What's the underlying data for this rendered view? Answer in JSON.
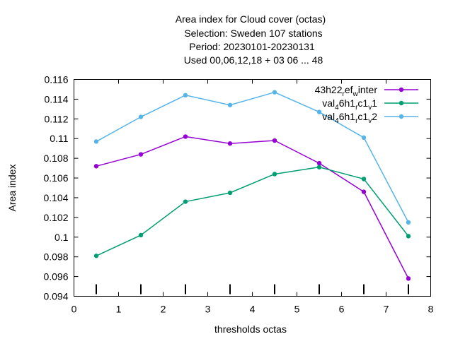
{
  "chart_data": {
    "type": "line",
    "title_lines": [
      "Area index  for Cloud cover (octas)",
      "Selection: Sweden    107 stations",
      "Period: 20230101-20230131",
      "Used  00,06,12,18  + 03 06 ... 48"
    ],
    "xlabel": "thresholds octas",
    "ylabel": "Area index",
    "xlim": [
      0,
      8
    ],
    "ylim": [
      0.094,
      0.116
    ],
    "x_ticks": [
      "0",
      "1",
      "2",
      "3",
      "4",
      "5",
      "6",
      "7",
      "8"
    ],
    "y_ticks": [
      "0.094",
      "0.096",
      "0.098",
      "0.1",
      "0.102",
      "0.104",
      "0.106",
      "0.108",
      "0.11",
      "0.112",
      "0.114",
      "0.116"
    ],
    "x": [
      0.5,
      1.5,
      2.5,
      3.5,
      4.5,
      5.5,
      6.5,
      7.5
    ],
    "series": [
      {
        "name": "43h22_ref_winter",
        "color": "#9400d3",
        "values": [
          0.1072,
          0.1084,
          0.1102,
          0.1095,
          0.1098,
          0.1075,
          0.1046,
          0.0958
        ]
      },
      {
        "name": "val_46h1_rc1_v1",
        "color": "#009e73",
        "values": [
          0.0981,
          0.1002,
          0.1036,
          0.1045,
          0.1064,
          0.1071,
          0.1059,
          0.1001
        ]
      },
      {
        "name": "val_46h1_rc1_v2",
        "color": "#56b4e9",
        "values": [
          0.1097,
          0.1122,
          0.1144,
          0.1134,
          0.1147,
          0.1127,
          0.1101,
          0.1015
        ]
      }
    ],
    "legend_position": "top-right",
    "grid": false
  }
}
